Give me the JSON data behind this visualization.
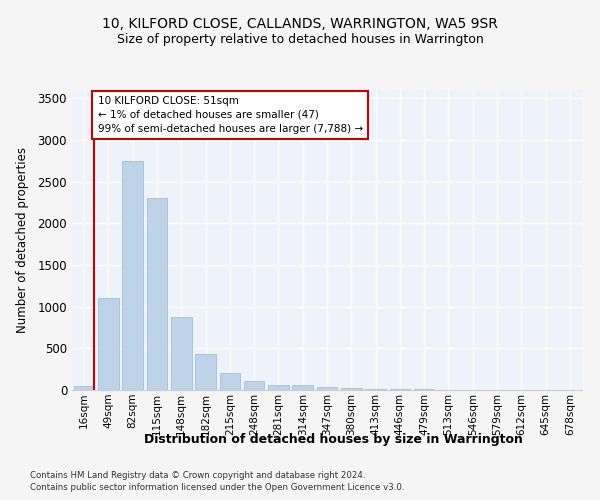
{
  "title": "10, KILFORD CLOSE, CALLANDS, WARRINGTON, WA5 9SR",
  "subtitle": "Size of property relative to detached houses in Warrington",
  "xlabel": "Distribution of detached houses by size in Warrington",
  "ylabel": "Number of detached properties",
  "categories": [
    "16sqm",
    "49sqm",
    "82sqm",
    "115sqm",
    "148sqm",
    "182sqm",
    "215sqm",
    "248sqm",
    "281sqm",
    "314sqm",
    "347sqm",
    "380sqm",
    "413sqm",
    "446sqm",
    "479sqm",
    "513sqm",
    "546sqm",
    "579sqm",
    "612sqm",
    "645sqm",
    "678sqm"
  ],
  "values": [
    47,
    1100,
    2750,
    2300,
    880,
    430,
    200,
    105,
    60,
    55,
    35,
    20,
    15,
    12,
    8,
    5,
    4,
    3,
    2,
    2,
    1
  ],
  "bar_color": "#bdd4e8",
  "bar_edge_color": "#9ab8d8",
  "annotation_text": "10 KILFORD CLOSE: 51sqm\n← 1% of detached houses are smaller (47)\n99% of semi-detached houses are larger (7,788) →",
  "annotation_box_color": "#ffffff",
  "annotation_box_edge": "#cc0000",
  "property_line_color": "#cc0000",
  "background_color": "#eef2fb",
  "grid_color": "#ffffff",
  "fig_background": "#f5f5f5",
  "footer_line1": "Contains HM Land Registry data © Crown copyright and database right 2024.",
  "footer_line2": "Contains public sector information licensed under the Open Government Licence v3.0.",
  "ylim": [
    0,
    3600
  ],
  "yticks": [
    0,
    500,
    1000,
    1500,
    2000,
    2500,
    3000,
    3500
  ]
}
